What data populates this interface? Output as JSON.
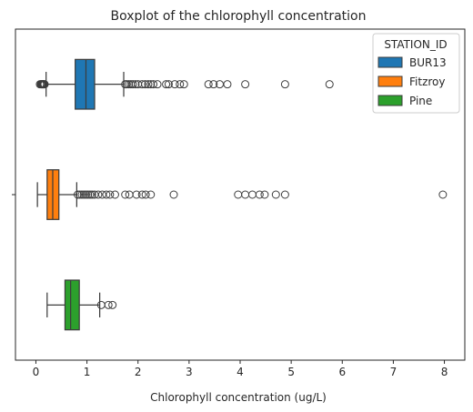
{
  "chart_data": {
    "type": "boxplot",
    "orientation": "horizontal",
    "title": "Boxplot of the chlorophyll concentration",
    "xlabel": "Chlorophyll concentration (ug/L)",
    "ylabel": "",
    "xlim": [
      -0.4,
      8.4
    ],
    "xticks": [
      "0",
      "1",
      "2",
      "3",
      "4",
      "5",
      "6",
      "7",
      "8"
    ],
    "yticks": [
      ""
    ],
    "grid": false,
    "legend": {
      "title": "STATION_ID",
      "placement": "top-right"
    },
    "series": [
      {
        "name": "BUR13",
        "color": "#1f77b4",
        "whisker_low": 0.2,
        "q1": 0.77,
        "median": 0.98,
        "q3": 1.15,
        "whisker_high": 1.72,
        "outliers": [
          0.08,
          0.1,
          0.11,
          0.12,
          0.13,
          0.14,
          0.15,
          0.16,
          0.17,
          1.75,
          1.78,
          1.82,
          1.86,
          1.9,
          1.95,
          2.0,
          2.08,
          2.14,
          2.2,
          2.25,
          2.3,
          2.38,
          2.55,
          2.6,
          2.72,
          2.82,
          2.9,
          3.38,
          3.48,
          3.6,
          3.75,
          4.1,
          4.88,
          5.75
        ]
      },
      {
        "name": "Fitzroy",
        "color": "#ff7f0e",
        "whisker_low": 0.03,
        "q1": 0.22,
        "median": 0.33,
        "q3": 0.45,
        "whisker_high": 0.8,
        "outliers": [
          0.82,
          0.86,
          0.9,
          0.94,
          0.98,
          1.02,
          1.06,
          1.1,
          1.15,
          1.22,
          1.3,
          1.38,
          1.45,
          1.55,
          1.75,
          1.83,
          1.97,
          2.08,
          2.15,
          2.25,
          2.7,
          3.96,
          4.1,
          4.24,
          4.38,
          4.48,
          4.7,
          4.88,
          7.97
        ]
      },
      {
        "name": "Pine",
        "color": "#2ca02c",
        "whisker_low": 0.22,
        "q1": 0.57,
        "median": 0.68,
        "q3": 0.85,
        "whisker_high": 1.25,
        "outliers": [
          1.28,
          1.42,
          1.5
        ]
      }
    ]
  }
}
